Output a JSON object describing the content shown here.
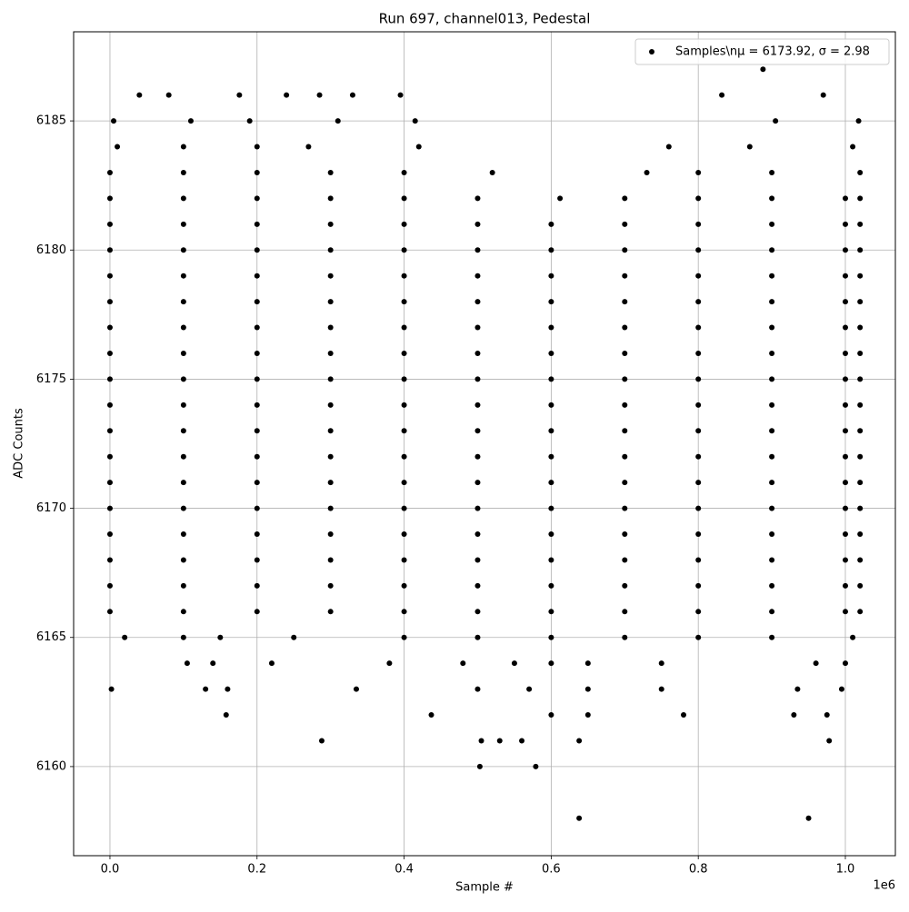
{
  "chart_data": {
    "type": "scatter",
    "title": "Run 697, channel013, Pedestal",
    "x_label": "Sample #",
    "y_label": "ADC Counts",
    "x_offset_label": "1e6",
    "xlim": [
      -49400,
      1068000
    ],
    "ylim": [
      6156.55,
      6188.45
    ],
    "xticks": [
      {
        "value": 0,
        "label": "0.0"
      },
      {
        "value": 200000,
        "label": "0.2"
      },
      {
        "value": 400000,
        "label": "0.4"
      },
      {
        "value": 600000,
        "label": "0.6"
      },
      {
        "value": 800000,
        "label": "0.8"
      },
      {
        "value": 1000000,
        "label": "1.0"
      }
    ],
    "yticks": [
      6160,
      6165,
      6170,
      6175,
      6180,
      6185
    ],
    "grid": true,
    "legend": "upper right",
    "series": [
      {
        "name": "Samples\\nμ = 6173.92, σ = 2.98",
        "color": "#000000",
        "x": [
          0,
          100000,
          200000,
          300000,
          400000,
          500000,
          600000,
          700000,
          800000,
          900000,
          1000000,
          1020000,
          0,
          100000,
          200000,
          300000,
          400000,
          500000,
          600000,
          700000,
          800000,
          900000,
          1000000,
          1020000,
          0,
          100000,
          200000,
          300000,
          400000,
          500000,
          600000,
          700000,
          800000,
          900000,
          1000000,
          1020000,
          0,
          100000,
          200000,
          300000,
          400000,
          500000,
          600000,
          700000,
          800000,
          900000,
          1000000,
          1020000,
          0,
          100000,
          200000,
          300000,
          400000,
          500000,
          600000,
          700000,
          800000,
          900000,
          1000000,
          1020000,
          0,
          100000,
          200000,
          300000,
          400000,
          500000,
          600000,
          700000,
          800000,
          900000,
          1000000,
          1020000,
          0,
          100000,
          200000,
          300000,
          400000,
          500000,
          600000,
          700000,
          800000,
          900000,
          1000000,
          1020000,
          0,
          100000,
          200000,
          300000,
          400000,
          500000,
          600000,
          700000,
          800000,
          900000,
          1000000,
          1020000,
          0,
          100000,
          200000,
          300000,
          400000,
          500000,
          600000,
          700000,
          800000,
          900000,
          1000000,
          1020000,
          0,
          100000,
          200000,
          300000,
          400000,
          500000,
          600000,
          700000,
          800000,
          900000,
          1000000,
          1020000,
          0,
          100000,
          200000,
          300000,
          400000,
          500000,
          600000,
          700000,
          800000,
          900000,
          1000000,
          1020000,
          0,
          100000,
          200000,
          300000,
          400000,
          500000,
          600000,
          700000,
          800000,
          900000,
          1000000,
          1020000,
          0,
          100000,
          200000,
          300000,
          400000,
          500000,
          600000,
          700000,
          800000,
          900000,
          1000000,
          1020000,
          0,
          100000,
          200000,
          300000,
          400000,
          500000,
          600000,
          700000,
          800000,
          900000,
          1000000,
          1020000,
          0,
          100000,
          200000,
          300000,
          400000,
          500000,
          600000,
          700000,
          800000,
          900000,
          1000000,
          1020000,
          0,
          100000,
          200000,
          300000,
          400000,
          500000,
          600000,
          700000,
          800000,
          900000,
          1000000,
          1020000,
          0,
          100000,
          200000,
          300000,
          400000,
          500000,
          612000,
          700000,
          800000,
          900000,
          1000000,
          1020000,
          0,
          100000,
          200000,
          300000,
          400000,
          520000,
          730000,
          800000,
          900000,
          1020000,
          10000,
          100000,
          200000,
          270000,
          420000,
          760000,
          870000,
          1010000,
          5000,
          110000,
          190000,
          310000,
          415000,
          905000,
          1018000,
          40000,
          80000,
          176000,
          240000,
          285000,
          330000,
          395000,
          832000,
          970000,
          888000,
          20000,
          100000,
          150000,
          250000,
          400000,
          500000,
          600000,
          700000,
          800000,
          900000,
          1010000,
          105000,
          140000,
          220000,
          380000,
          480000,
          550000,
          600000,
          650000,
          750000,
          960000,
          1000000,
          2000,
          130000,
          160000,
          335000,
          500000,
          570000,
          650000,
          750000,
          935000,
          995000,
          158000,
          437000,
          600000,
          650000,
          780000,
          930000,
          975000,
          288000,
          505000,
          530000,
          560000,
          638000,
          978000,
          503000,
          579000,
          638000,
          950000
        ],
        "values": [
          6166,
          6166,
          6166,
          6166,
          6166,
          6166,
          6166,
          6166,
          6166,
          6166,
          6166,
          6166,
          6167,
          6167,
          6167,
          6167,
          6167,
          6167,
          6167,
          6167,
          6167,
          6167,
          6167,
          6167,
          6168,
          6168,
          6168,
          6168,
          6168,
          6168,
          6168,
          6168,
          6168,
          6168,
          6168,
          6168,
          6169,
          6169,
          6169,
          6169,
          6169,
          6169,
          6169,
          6169,
          6169,
          6169,
          6169,
          6169,
          6170,
          6170,
          6170,
          6170,
          6170,
          6170,
          6170,
          6170,
          6170,
          6170,
          6170,
          6170,
          6171,
          6171,
          6171,
          6171,
          6171,
          6171,
          6171,
          6171,
          6171,
          6171,
          6171,
          6171,
          6172,
          6172,
          6172,
          6172,
          6172,
          6172,
          6172,
          6172,
          6172,
          6172,
          6172,
          6172,
          6173,
          6173,
          6173,
          6173,
          6173,
          6173,
          6173,
          6173,
          6173,
          6173,
          6173,
          6173,
          6174,
          6174,
          6174,
          6174,
          6174,
          6174,
          6174,
          6174,
          6174,
          6174,
          6174,
          6174,
          6175,
          6175,
          6175,
          6175,
          6175,
          6175,
          6175,
          6175,
          6175,
          6175,
          6175,
          6175,
          6176,
          6176,
          6176,
          6176,
          6176,
          6176,
          6176,
          6176,
          6176,
          6176,
          6176,
          6176,
          6177,
          6177,
          6177,
          6177,
          6177,
          6177,
          6177,
          6177,
          6177,
          6177,
          6177,
          6177,
          6178,
          6178,
          6178,
          6178,
          6178,
          6178,
          6178,
          6178,
          6178,
          6178,
          6178,
          6178,
          6179,
          6179,
          6179,
          6179,
          6179,
          6179,
          6179,
          6179,
          6179,
          6179,
          6179,
          6179,
          6180,
          6180,
          6180,
          6180,
          6180,
          6180,
          6180,
          6180,
          6180,
          6180,
          6180,
          6180,
          6181,
          6181,
          6181,
          6181,
          6181,
          6181,
          6181,
          6181,
          6181,
          6181,
          6181,
          6181,
          6182,
          6182,
          6182,
          6182,
          6182,
          6182,
          6182,
          6182,
          6182,
          6182,
          6182,
          6182,
          6183,
          6183,
          6183,
          6183,
          6183,
          6183,
          6183,
          6183,
          6183,
          6183,
          6184,
          6184,
          6184,
          6184,
          6184,
          6184,
          6184,
          6184,
          6185,
          6185,
          6185,
          6185,
          6185,
          6185,
          6185,
          6186,
          6186,
          6186,
          6186,
          6186,
          6186,
          6186,
          6186,
          6186,
          6187,
          6165,
          6165,
          6165,
          6165,
          6165,
          6165,
          6165,
          6165,
          6165,
          6165,
          6165,
          6164,
          6164,
          6164,
          6164,
          6164,
          6164,
          6164,
          6164,
          6164,
          6164,
          6164,
          6163,
          6163,
          6163,
          6163,
          6163,
          6163,
          6163,
          6163,
          6163,
          6163,
          6162,
          6162,
          6162,
          6162,
          6162,
          6162,
          6162,
          6161,
          6161,
          6161,
          6161,
          6161,
          6161,
          6160,
          6160,
          6158,
          6158
        ]
      }
    ]
  }
}
